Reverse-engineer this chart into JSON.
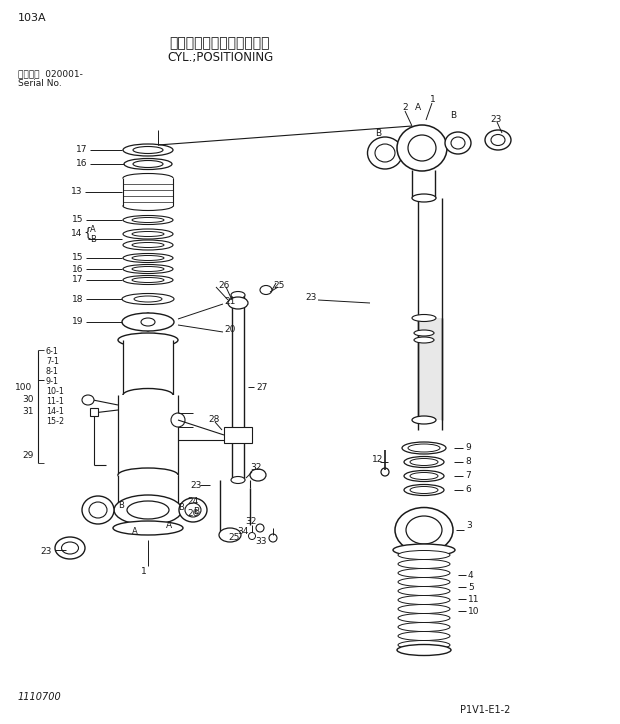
{
  "title_jp": "シリンダ；ポジショニング",
  "title_en": "CYL.;POSITIONING",
  "page_id": "103A",
  "serial_label": "適用号機  020001-",
  "serial_no": "Serial No.",
  "bottom_left": "1110700",
  "bottom_right": "P1V1-E1-2",
  "bg_color": "#ffffff",
  "line_color": "#1a1a1a",
  "text_color": "#1a1a1a",
  "fig_width": 6.2,
  "fig_height": 7.24,
  "dpi": 100
}
